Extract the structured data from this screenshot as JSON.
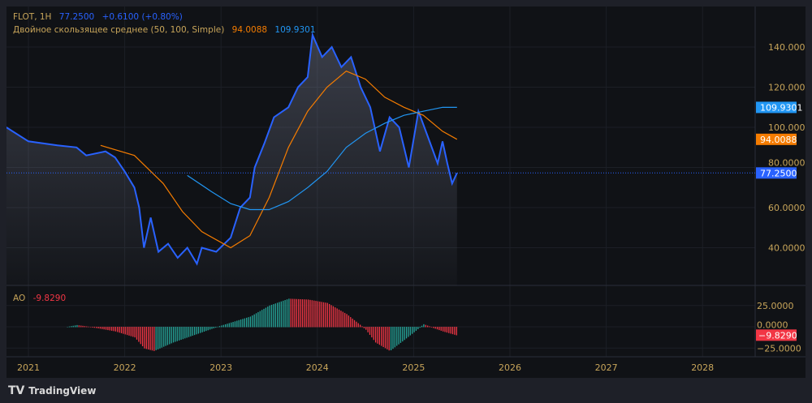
{
  "header": {
    "symbol": "FLOT, 1H",
    "price": "77.2500",
    "change": "+0.6100 (+0.80%)",
    "ma_label": "Двойное скользящее среднее (50, 100, Simple)",
    "ma50": "94.0088",
    "ma100": "109.9301"
  },
  "ao": {
    "label": "AO",
    "value": "-9.8290"
  },
  "footer": {
    "brand": "TradingView"
  },
  "colors": {
    "price": "#2962ff",
    "ma50": "#f57c00",
    "ma100": "#2196f3",
    "up": "#26a69a",
    "down": "#f23645",
    "axis": "#c8a55a"
  },
  "chart_data": [
    {
      "type": "line",
      "title": "FLOT, 1H",
      "ylim": [
        20,
        150
      ],
      "yticks": [
        "140.0000",
        "120.0000",
        "100.0000",
        "80.0000",
        "60.0000",
        "40.0000"
      ],
      "xticks": [
        "2021",
        "2022",
        "2023",
        "2024",
        "2025",
        "2026",
        "2027",
        "2028"
      ],
      "series": [
        {
          "name": "FLOT",
          "x": [
            2020.77,
            2021,
            2021.3,
            2021.5,
            2021.6,
            2021.8,
            2021.9,
            2022,
            2022.1,
            2022.15,
            2022.2,
            2022.27,
            2022.35,
            2022.45,
            2022.55,
            2022.65,
            2022.75,
            2022.8,
            2022.95,
            2023.1,
            2023.2,
            2023.3,
            2023.35,
            2023.45,
            2023.55,
            2023.7,
            2023.8,
            2023.9,
            2023.95,
            2024.05,
            2024.15,
            2024.25,
            2024.35,
            2024.45,
            2024.55,
            2024.65,
            2024.75,
            2024.85,
            2024.95,
            2025.05,
            2025.15,
            2025.25,
            2025.3,
            2025.35,
            2025.4,
            2025.45
          ],
          "y": [
            100,
            93,
            91,
            90,
            86,
            88,
            85,
            78,
            70,
            60,
            40,
            55,
            38,
            42,
            35,
            40,
            32,
            40,
            38,
            45,
            60,
            65,
            80,
            92,
            105,
            110,
            120,
            125,
            146,
            135,
            140,
            130,
            135,
            120,
            110,
            88,
            105,
            100,
            80,
            108,
            95,
            82,
            93,
            82,
            72,
            77.25
          ]
        },
        {
          "name": "MA50",
          "x": [
            2021.75,
            2022.1,
            2022.4,
            2022.6,
            2022.8,
            2023.1,
            2023.3,
            2023.5,
            2023.7,
            2023.9,
            2024.1,
            2024.3,
            2024.5,
            2024.7,
            2024.9,
            2025.1,
            2025.3,
            2025.45
          ],
          "y": [
            91,
            86,
            72,
            58,
            48,
            40,
            46,
            65,
            90,
            108,
            120,
            128,
            124,
            115,
            110,
            106,
            98,
            94.0088
          ]
        },
        {
          "name": "MA100",
          "x": [
            2022.65,
            2022.9,
            2023.1,
            2023.3,
            2023.5,
            2023.7,
            2023.9,
            2024.1,
            2024.3,
            2024.5,
            2024.7,
            2024.9,
            2025.1,
            2025.3,
            2025.45
          ],
          "y": [
            76,
            68,
            62,
            59,
            59,
            63,
            70,
            78,
            90,
            97,
            102,
            106,
            108,
            110,
            109.9301
          ]
        }
      ],
      "last_labels": [
        "109.9301",
        "94.0088",
        "77.2500"
      ]
    },
    {
      "type": "bar",
      "title": "AO",
      "ylim": [
        -30,
        38
      ],
      "yticks": [
        "25.0000",
        "0.0000",
        "−25.0000"
      ],
      "x": [
        2021.4,
        2021.5,
        2021.7,
        2021.9,
        2022.1,
        2022.2,
        2022.3,
        2022.5,
        2022.7,
        2022.9,
        2023.1,
        2023.3,
        2023.5,
        2023.7,
        2023.9,
        2024.1,
        2024.3,
        2024.5,
        2024.6,
        2024.75,
        2024.9,
        2025.1,
        2025.3,
        2025.45
      ],
      "y": [
        0,
        2,
        -1,
        -5,
        -12,
        -25,
        -28,
        -18,
        -10,
        -2,
        5,
        12,
        25,
        33,
        32,
        28,
        15,
        -3,
        -18,
        -28,
        -15,
        3,
        -5,
        -9.829
      ]
    }
  ]
}
